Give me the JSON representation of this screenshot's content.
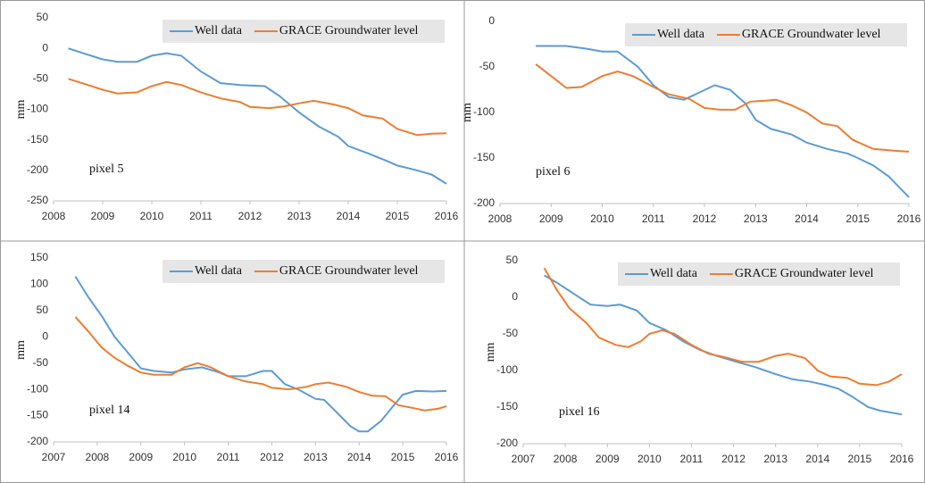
{
  "chart_data": [
    {
      "type": "line",
      "y_label": "mm",
      "annotation": "pixel 5",
      "xlim": [
        2008,
        2016
      ],
      "xticks": [
        2008,
        2009,
        2010,
        2011,
        2012,
        2013,
        2014,
        2015,
        2016
      ],
      "ylim": [
        -250,
        50
      ],
      "yticks": [
        -250,
        -200,
        -150,
        -100,
        -50,
        0,
        50
      ],
      "series": [
        {
          "name": "Well data",
          "color": "#5b9bd5",
          "x": [
            2008.3,
            2008.6,
            2009,
            2009.3,
            2009.7,
            2010,
            2010.3,
            2010.6,
            2011,
            2011.4,
            2011.8,
            2012,
            2012.3,
            2012.6,
            2013,
            2013.4,
            2013.8,
            2014,
            2014.4,
            2014.8,
            2015,
            2015.4,
            2015.7,
            2016
          ],
          "values": [
            0,
            -8,
            -18,
            -22,
            -22,
            -12,
            -8,
            -12,
            -38,
            -57,
            -60,
            -61,
            -62,
            -78,
            -105,
            -128,
            -145,
            -160,
            -172,
            -185,
            -192,
            -200,
            -207,
            -222
          ]
        },
        {
          "name": "GRACE Groundwater level",
          "color": "#ed7d31",
          "x": [
            2008.3,
            2008.7,
            2009,
            2009.3,
            2009.7,
            2010,
            2010.3,
            2010.6,
            2011,
            2011.4,
            2011.8,
            2012,
            2012.4,
            2012.7,
            2013,
            2013.3,
            2013.7,
            2014,
            2014.3,
            2014.7,
            2015,
            2015.4,
            2015.7,
            2016
          ],
          "values": [
            -50,
            -60,
            -68,
            -74,
            -72,
            -62,
            -55,
            -60,
            -72,
            -82,
            -88,
            -96,
            -98,
            -95,
            -90,
            -86,
            -92,
            -98,
            -110,
            -115,
            -132,
            -142,
            -140,
            -139
          ]
        }
      ]
    },
    {
      "type": "line",
      "y_label": "mm",
      "annotation": "pixel 6",
      "xlim": [
        2008,
        2016
      ],
      "xticks": [
        2008,
        2009,
        2010,
        2011,
        2012,
        2013,
        2014,
        2015,
        2016
      ],
      "ylim": [
        -200,
        0
      ],
      "yticks": [
        -200,
        -150,
        -100,
        -50,
        0
      ],
      "series": [
        {
          "name": "Well data",
          "color": "#5b9bd5",
          "x": [
            2008.7,
            2009.3,
            2009.7,
            2010,
            2010.3,
            2010.7,
            2011,
            2011.3,
            2011.6,
            2011.9,
            2012.2,
            2012.5,
            2012.8,
            2013,
            2013.3,
            2013.7,
            2014,
            2014.4,
            2014.8,
            2015,
            2015.3,
            2015.6,
            2016
          ],
          "values": [
            -27,
            -27,
            -30,
            -33,
            -33,
            -50,
            -70,
            -83,
            -86,
            -78,
            -70,
            -75,
            -90,
            -108,
            -118,
            -124,
            -133,
            -140,
            -145,
            -150,
            -158,
            -170,
            -193
          ]
        },
        {
          "name": "GRACE Groundwater level",
          "color": "#ed7d31",
          "x": [
            2008.7,
            2009,
            2009.3,
            2009.6,
            2010,
            2010.3,
            2010.6,
            2011,
            2011.3,
            2011.7,
            2012,
            2012.3,
            2012.6,
            2012.9,
            2013.2,
            2013.4,
            2013.7,
            2014,
            2014.3,
            2014.6,
            2014.9,
            2015.3,
            2015.7,
            2016
          ],
          "values": [
            -47,
            -60,
            -73,
            -72,
            -60,
            -55,
            -60,
            -72,
            -80,
            -85,
            -95,
            -97,
            -97,
            -88,
            -87,
            -86,
            -92,
            -100,
            -112,
            -115,
            -130,
            -140,
            -142,
            -143
          ]
        }
      ]
    },
    {
      "type": "line",
      "y_label": "mm",
      "annotation": "pixel 14",
      "xlim": [
        2007,
        2016
      ],
      "xticks": [
        2007,
        2008,
        2009,
        2010,
        2011,
        2012,
        2013,
        2014,
        2015,
        2016
      ],
      "ylim": [
        -200,
        150
      ],
      "yticks": [
        -200,
        -150,
        -100,
        -50,
        0,
        50,
        100,
        150
      ],
      "series": [
        {
          "name": "Well data",
          "color": "#5b9bd5",
          "x": [
            2007.5,
            2007.8,
            2008.1,
            2008.4,
            2008.7,
            2009,
            2009.3,
            2009.7,
            2010,
            2010.4,
            2010.8,
            2011,
            2011.4,
            2011.8,
            2012,
            2012.3,
            2012.6,
            2013,
            2013.2,
            2013.5,
            2013.8,
            2014,
            2014.2,
            2014.5,
            2014.8,
            2015,
            2015.3,
            2015.7,
            2016
          ],
          "values": [
            115,
            75,
            40,
            0,
            -30,
            -60,
            -65,
            -68,
            -62,
            -58,
            -68,
            -75,
            -75,
            -65,
            -65,
            -90,
            -100,
            -118,
            -120,
            -145,
            -170,
            -180,
            -180,
            -160,
            -130,
            -110,
            -103,
            -104,
            -103
          ]
        },
        {
          "name": "GRACE Groundwater level",
          "color": "#ed7d31",
          "x": [
            2007.5,
            2007.8,
            2008.1,
            2008.4,
            2008.7,
            2009,
            2009.3,
            2009.7,
            2010,
            2010.3,
            2010.6,
            2011,
            2011.4,
            2011.8,
            2012,
            2012.4,
            2012.8,
            2013,
            2013.3,
            2013.7,
            2014,
            2014.3,
            2014.6,
            2014.9,
            2015.2,
            2015.5,
            2015.8,
            2016
          ],
          "values": [
            38,
            10,
            -20,
            -40,
            -55,
            -68,
            -72,
            -72,
            -58,
            -50,
            -58,
            -75,
            -85,
            -90,
            -97,
            -100,
            -95,
            -90,
            -87,
            -95,
            -105,
            -112,
            -113,
            -130,
            -135,
            -140,
            -137,
            -132
          ]
        }
      ]
    },
    {
      "type": "line",
      "y_label": "mm",
      "annotation": "pixel 16",
      "xlim": [
        2007,
        2016
      ],
      "xticks": [
        2007,
        2008,
        2009,
        2010,
        2011,
        2012,
        2013,
        2014,
        2015,
        2016
      ],
      "ylim": [
        -200,
        50
      ],
      "yticks": [
        -200,
        -150,
        -100,
        -50,
        0,
        50
      ],
      "series": [
        {
          "name": "Well data",
          "color": "#5b9bd5",
          "x": [
            2007.5,
            2007.8,
            2008.2,
            2008.6,
            2009,
            2009.3,
            2009.7,
            2010,
            2010.4,
            2010.8,
            2011.2,
            2011.6,
            2012,
            2012.5,
            2013,
            2013.4,
            2013.8,
            2014.2,
            2014.5,
            2014.8,
            2015.2,
            2015.5,
            2016
          ],
          "values": [
            30,
            20,
            5,
            -10,
            -12,
            -10,
            -18,
            -35,
            -45,
            -60,
            -72,
            -80,
            -87,
            -95,
            -105,
            -112,
            -115,
            -120,
            -125,
            -135,
            -150,
            -155,
            -160
          ]
        },
        {
          "name": "GRACE Groundwater level",
          "color": "#ed7d31",
          "x": [
            2007.5,
            2007.8,
            2008.1,
            2008.5,
            2008.8,
            2009.2,
            2009.5,
            2009.8,
            2010,
            2010.3,
            2010.6,
            2011,
            2011.4,
            2011.8,
            2012.2,
            2012.6,
            2013,
            2013.3,
            2013.7,
            2014,
            2014.3,
            2014.7,
            2015,
            2015.4,
            2015.7,
            2016
          ],
          "values": [
            40,
            10,
            -15,
            -35,
            -55,
            -65,
            -68,
            -60,
            -50,
            -45,
            -50,
            -65,
            -77,
            -82,
            -88,
            -88,
            -80,
            -77,
            -83,
            -100,
            -108,
            -110,
            -118,
            -120,
            -115,
            -105
          ]
        }
      ]
    }
  ]
}
